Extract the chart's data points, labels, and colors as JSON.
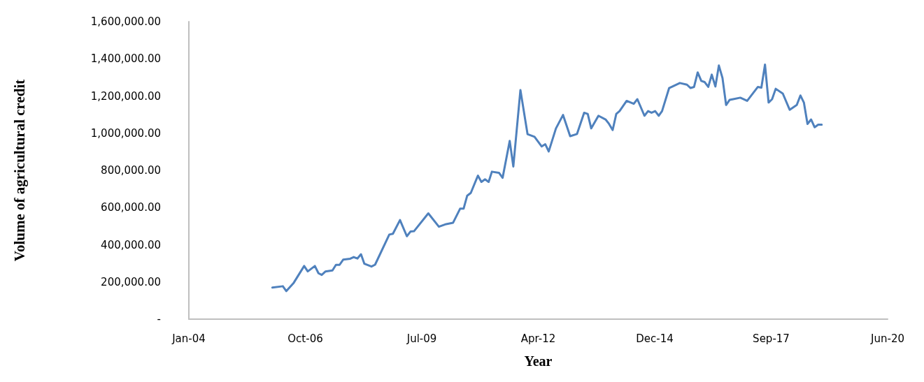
{
  "chart_data": {
    "type": "line",
    "xlabel": "Year",
    "ylabel": "Volume of agricultural credit",
    "xlim": [
      "2004-01-15",
      "2020-06-19"
    ],
    "xticks": [
      {
        "value": "2004-01-15",
        "label": "Jan-04"
      },
      {
        "value": "2006-10-11",
        "label": "Oct-06"
      },
      {
        "value": "2009-07-07",
        "label": "Jul-09"
      },
      {
        "value": "2012-04-02",
        "label": "Apr-12"
      },
      {
        "value": "2014-12-28",
        "label": "Dec-14"
      },
      {
        "value": "2017-09-23",
        "label": "Sep-17"
      },
      {
        "value": "2020-06-19",
        "label": "Jun-20"
      }
    ],
    "ylim": [
      0,
      1600000
    ],
    "yticks": [
      {
        "value": 0,
        "label": "-"
      },
      {
        "value": 200000,
        "label": "200,000.00"
      },
      {
        "value": 400000,
        "label": "400,000.00"
      },
      {
        "value": 600000,
        "label": "600,000.00"
      },
      {
        "value": 800000,
        "label": "800,000.00"
      },
      {
        "value": 1000000,
        "label": "1,000,000.00"
      },
      {
        "value": 1200000,
        "label": "1,200,000.00"
      },
      {
        "value": 1400000,
        "label": "1,400,000.00"
      },
      {
        "value": 1600000,
        "label": "1,600,000.00"
      }
    ],
    "grid": false,
    "marker": "none",
    "line_style": "solid",
    "series": [
      {
        "color": "#4f81bd",
        "x": [
          "2006-01",
          "2006-04",
          "2006-05",
          "2006-07",
          "2006-10",
          "2006-11",
          "2007-01",
          "2007-02",
          "2007-03",
          "2007-04",
          "2007-06",
          "2007-07",
          "2007-08",
          "2007-09",
          "2007-11",
          "2007-12",
          "2008-01",
          "2008-02",
          "2008-03",
          "2008-05",
          "2008-06",
          "2008-10",
          "2008-11",
          "2009-01",
          "2009-03",
          "2009-04",
          "2009-05",
          "2009-09",
          "2009-12",
          "2010-02",
          "2010-04",
          "2010-06",
          "2010-07",
          "2010-08",
          "2010-09",
          "2010-11",
          "2010-12",
          "2011-01",
          "2011-02",
          "2011-03",
          "2011-05",
          "2011-06",
          "2011-08",
          "2011-09",
          "2011-11",
          "2012-01",
          "2012-03",
          "2012-05",
          "2012-06",
          "2012-07",
          "2012-09",
          "2012-11",
          "2013-01",
          "2013-03",
          "2013-05",
          "2013-06",
          "2013-07",
          "2013-09",
          "2013-11",
          "2013-12",
          "2014-01",
          "2014-02",
          "2014-03",
          "2014-05",
          "2014-07",
          "2014-08",
          "2014-10",
          "2014-11",
          "2014-12",
          "2015-01",
          "2015-02",
          "2015-03",
          "2015-05",
          "2015-08",
          "2015-10",
          "2015-11",
          "2015-12",
          "2016-01",
          "2016-02",
          "2016-03",
          "2016-04",
          "2016-05",
          "2016-06",
          "2016-07",
          "2016-08",
          "2016-09",
          "2016-10",
          "2016-11",
          "2017-01",
          "2017-03",
          "2017-06",
          "2017-07",
          "2017-08",
          "2017-09",
          "2017-10",
          "2017-11",
          "2018-01",
          "2018-03",
          "2018-05",
          "2018-06",
          "2018-07",
          "2018-08",
          "2018-09",
          "2018-10",
          "2018-11",
          "2018-12"
        ],
        "values": [
          170000,
          177000,
          151000,
          193000,
          286000,
          257000,
          286000,
          247000,
          238000,
          256000,
          262000,
          292000,
          292000,
          320000,
          325000,
          334000,
          326000,
          349000,
          298000,
          283000,
          293000,
          455000,
          459000,
          533000,
          446000,
          471000,
          473000,
          569000,
          497000,
          511000,
          518000,
          594000,
          594000,
          664000,
          679000,
          772000,
          738000,
          752000,
          738000,
          793000,
          787000,
          760000,
          959000,
          821000,
          1232000,
          995000,
          981000,
          929000,
          941000,
          902000,
          1026000,
          1098000,
          984000,
          996000,
          1110000,
          1104000,
          1026000,
          1094000,
          1074000,
          1050000,
          1017000,
          1104000,
          1119000,
          1174000,
          1158000,
          1183000,
          1094000,
          1119000,
          1110000,
          1119000,
          1094000,
          1119000,
          1243000,
          1270000,
          1261000,
          1243000,
          1249000,
          1327000,
          1281000,
          1275000,
          1249000,
          1315000,
          1251000,
          1364000,
          1297000,
          1152000,
          1179000,
          1183000,
          1191000,
          1174000,
          1249000,
          1245000,
          1369000,
          1165000,
          1183000,
          1239000,
          1213000,
          1126000,
          1152000,
          1203000,
          1165000,
          1050000,
          1074000,
          1032000,
          1046000,
          1046000
        ]
      }
    ]
  }
}
